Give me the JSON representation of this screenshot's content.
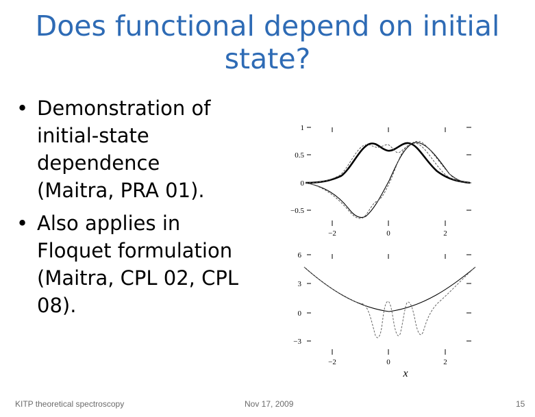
{
  "slide": {
    "title": "Does functional depend on initial state?",
    "bullets": [
      "Demonstration of initial-state dependence (Maitra, PRA 01).",
      "Also applies in Floquet formulation (Maitra, CPL 02, CPL 08)."
    ]
  },
  "figure": {
    "top_panel": {
      "ytick_labels": [
        "1",
        "0.5",
        "0",
        "−0.5"
      ],
      "xtick_labels": [
        "−2",
        "0",
        "2"
      ]
    },
    "bottom_panel": {
      "ytick_labels": [
        "6",
        "3",
        "0",
        "−3"
      ],
      "xtick_labels": [
        "−2",
        "0",
        "2"
      ],
      "xlabel": "x"
    }
  },
  "footer": {
    "left": "KITP theoretical spectroscopy",
    "center": "Nov 17, 2009",
    "page": "15"
  },
  "colors": {
    "title": "#2e6bb5",
    "footer_text": "#6b6b6b"
  }
}
